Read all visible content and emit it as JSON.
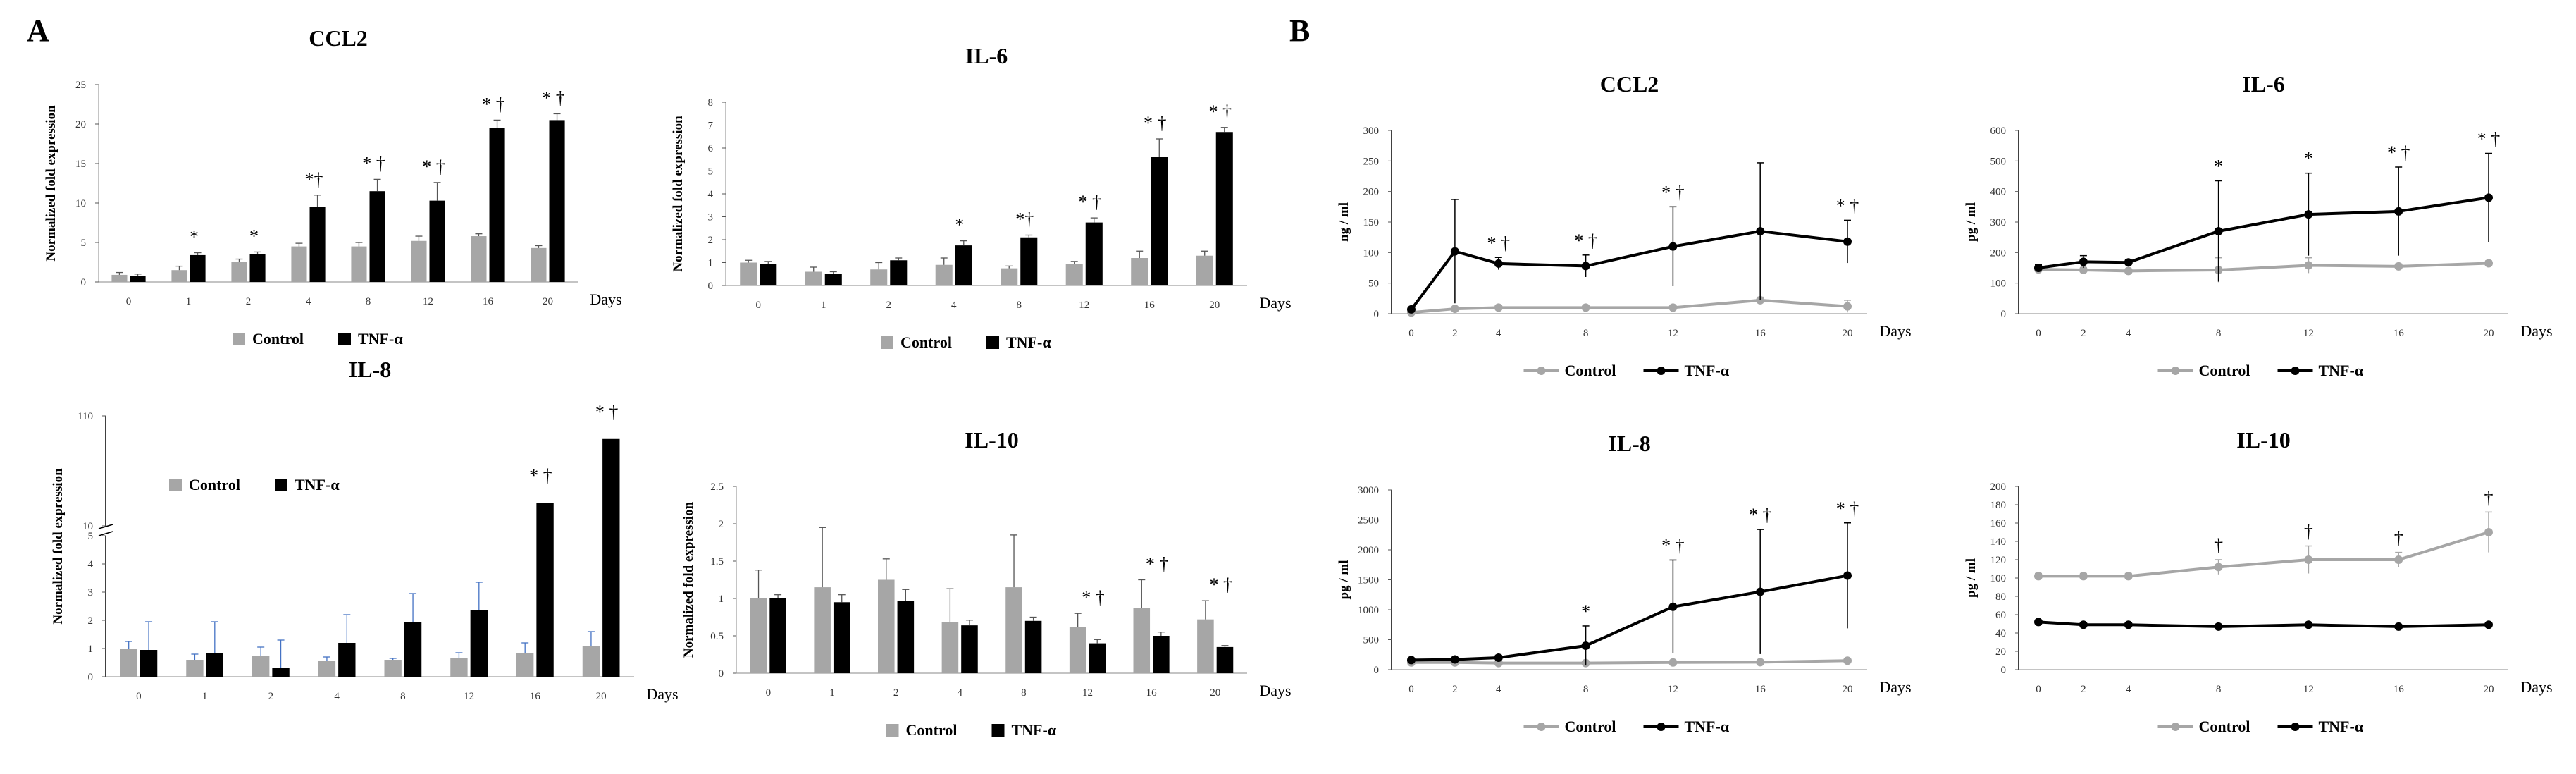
{
  "panels": {
    "A": "A",
    "B": "B"
  },
  "days_label": "Days",
  "colors": {
    "control": "#a6a6a6",
    "tnf": "#000000",
    "error": "#4472c4"
  },
  "legend": {
    "control": "Control",
    "tnf": "TNF-α"
  },
  "chart_data": [
    {
      "id": "a_ccl2",
      "panel": "A",
      "type": "bar",
      "title": "CCL2",
      "ylabel": "Normalized fold expression",
      "xlabel": "Days",
      "ylim": [
        0,
        25
      ],
      "yticks": [
        "0",
        "5",
        "10",
        "15",
        "20",
        "25"
      ],
      "ytick_values": [
        0,
        5,
        10,
        15,
        20,
        25
      ],
      "categories": [
        "0",
        "1",
        "2",
        "4",
        "8",
        "12",
        "16",
        "20"
      ],
      "series": [
        {
          "name": "Control",
          "values": [
            0.9,
            1.5,
            2.5,
            4.5,
            4.5,
            5.2,
            5.8,
            4.3
          ],
          "errors": [
            0.3,
            0.5,
            0.4,
            0.4,
            0.5,
            0.6,
            0.3,
            0.3
          ]
        },
        {
          "name": "TNF-α",
          "values": [
            0.8,
            3.4,
            3.5,
            9.5,
            11.5,
            10.3,
            19.5,
            20.5
          ],
          "errors": [
            0.2,
            0.3,
            0.3,
            1.5,
            1.5,
            2.3,
            1.0,
            0.8
          ]
        }
      ],
      "sig": [
        "",
        "*",
        "*",
        "*†",
        "* †",
        "* †",
        "* †",
        "* †"
      ],
      "legend_position": "bottom"
    },
    {
      "id": "a_il6",
      "panel": "A",
      "type": "bar",
      "title": "IL-6",
      "ylabel": "Normalized fold expression",
      "xlabel": "Days",
      "ylim": [
        0,
        8
      ],
      "yticks": [
        "0",
        "1",
        "2",
        "3",
        "4",
        "5",
        "6",
        "7",
        "8"
      ],
      "ytick_values": [
        0,
        1,
        2,
        3,
        4,
        5,
        6,
        7,
        8
      ],
      "categories": [
        "0",
        "1",
        "2",
        "4",
        "8",
        "12",
        "16",
        "20"
      ],
      "series": [
        {
          "name": "Control",
          "values": [
            1.0,
            0.6,
            0.7,
            0.9,
            0.75,
            0.95,
            1.2,
            1.3
          ],
          "errors": [
            0.1,
            0.2,
            0.3,
            0.3,
            0.1,
            0.1,
            0.3,
            0.2
          ]
        },
        {
          "name": "TNF-α",
          "values": [
            0.95,
            0.5,
            1.1,
            1.75,
            2.1,
            2.75,
            5.6,
            6.7
          ],
          "errors": [
            0.1,
            0.1,
            0.1,
            0.2,
            0.1,
            0.2,
            0.8,
            0.2
          ]
        }
      ],
      "sig": [
        "",
        "",
        "",
        "*",
        "*†",
        "* †",
        "* †",
        "* †"
      ],
      "legend_position": "bottom"
    },
    {
      "id": "a_il8",
      "panel": "A",
      "type": "bar",
      "title": "IL-8",
      "ylabel": "Normalized fold expression",
      "xlabel": "Days",
      "ylim": [
        0,
        5
      ],
      "ylim_upper": [
        10,
        110
      ],
      "axis_break": true,
      "yticks": [
        "0",
        "1",
        "2",
        "3",
        "4",
        "5"
      ],
      "ytick_values": [
        0,
        1,
        2,
        3,
        4,
        5
      ],
      "upper_yticks": [
        "10",
        "110"
      ],
      "upper_ytick_values": [
        10,
        110
      ],
      "categories": [
        "0",
        "1",
        "2",
        "4",
        "8",
        "12",
        "16",
        "20"
      ],
      "series": [
        {
          "name": "Control",
          "values": [
            1.0,
            0.6,
            0.75,
            0.55,
            0.6,
            0.65,
            0.85,
            1.1
          ],
          "errors": [
            0.25,
            0.2,
            0.3,
            0.15,
            0.05,
            0.2,
            0.35,
            0.5
          ]
        },
        {
          "name": "TNF-α",
          "values": [
            0.95,
            0.85,
            0.3,
            1.2,
            1.95,
            2.35,
            31,
            89
          ],
          "errors": [
            1.0,
            1.1,
            1.0,
            1.0,
            1.0,
            1.0,
            1.0,
            1.0
          ]
        }
      ],
      "sig": [
        "",
        "",
        "",
        "",
        "",
        "",
        "* †",
        "* †"
      ],
      "legend_position": "top-left"
    },
    {
      "id": "a_il10",
      "panel": "A",
      "type": "bar",
      "title": "IL-10",
      "ylabel": "Normalized fold expression",
      "xlabel": "Days",
      "ylim": [
        0,
        2.5
      ],
      "yticks": [
        "0",
        "0.5",
        "1",
        "1.5",
        "2",
        "2.5"
      ],
      "ytick_values": [
        0,
        0.5,
        1,
        1.5,
        2,
        2.5
      ],
      "categories": [
        "0",
        "1",
        "2",
        "4",
        "8",
        "12",
        "16",
        "20"
      ],
      "series": [
        {
          "name": "Control",
          "values": [
            1.0,
            1.15,
            1.25,
            0.68,
            1.15,
            0.62,
            0.87,
            0.72
          ],
          "errors": [
            0.38,
            0.8,
            0.28,
            0.45,
            0.7,
            0.18,
            0.38,
            0.25
          ]
        },
        {
          "name": "TNF-α",
          "values": [
            1.0,
            0.95,
            0.97,
            0.64,
            0.7,
            0.4,
            0.5,
            0.35
          ],
          "errors": [
            0.05,
            0.1,
            0.15,
            0.07,
            0.05,
            0.05,
            0.05,
            0.02
          ]
        }
      ],
      "sig": [
        "",
        "",
        "",
        "",
        "",
        "* †",
        "* †",
        "* †"
      ],
      "legend_position": "bottom"
    },
    {
      "id": "b_ccl2",
      "panel": "B",
      "type": "line",
      "title": "CCL2",
      "ylabel": "ng / ml",
      "xlabel": "Days",
      "ylim": [
        0,
        300
      ],
      "yticks": [
        "0",
        "50",
        "100",
        "150",
        "200",
        "250",
        "300"
      ],
      "ytick_values": [
        0,
        50,
        100,
        150,
        200,
        250,
        300
      ],
      "x": [
        0,
        2,
        4,
        8,
        12,
        16,
        20
      ],
      "series": [
        {
          "name": "Control",
          "values": [
            2,
            8,
            10,
            10,
            10,
            22,
            12
          ],
          "errors": [
            2,
            3,
            3,
            3,
            3,
            5,
            10
          ]
        },
        {
          "name": "TNF-α",
          "values": [
            7,
            102,
            82,
            78,
            110,
            135,
            118
          ],
          "errors": [
            3,
            85,
            10,
            18,
            65,
            112,
            35
          ]
        }
      ],
      "sig": [
        "",
        "",
        "* †",
        "* †",
        "* †",
        "",
        "* †"
      ],
      "legend_position": "bottom"
    },
    {
      "id": "b_il6",
      "panel": "B",
      "type": "line",
      "title": "IL-6",
      "ylabel": "pg / ml",
      "xlabel": "Days",
      "ylim": [
        0,
        600
      ],
      "yticks": [
        "0",
        "100",
        "200",
        "300",
        "400",
        "500",
        "600"
      ],
      "ytick_values": [
        0,
        100,
        200,
        300,
        400,
        500,
        600
      ],
      "x": [
        0,
        2,
        4,
        8,
        12,
        16,
        20
      ],
      "series": [
        {
          "name": "Control",
          "values": [
            145,
            143,
            140,
            143,
            158,
            155,
            165
          ],
          "errors": [
            5,
            8,
            6,
            40,
            25,
            8,
            8
          ]
        },
        {
          "name": "TNF-α",
          "values": [
            150,
            170,
            168,
            270,
            325,
            335,
            380
          ],
          "errors": [
            10,
            20,
            10,
            165,
            135,
            145,
            145
          ]
        }
      ],
      "sig": [
        "",
        "",
        "",
        "*",
        "*",
        "* †",
        "* †"
      ],
      "legend_position": "bottom"
    },
    {
      "id": "b_il8",
      "panel": "B",
      "type": "line",
      "title": "IL-8",
      "ylabel": "pg / ml",
      "xlabel": "Days",
      "ylim": [
        0,
        3000
      ],
      "yticks": [
        "0",
        "500",
        "1000",
        "1500",
        "2000",
        "2500",
        "3000"
      ],
      "ytick_values": [
        0,
        500,
        1000,
        1500,
        2000,
        2500,
        3000
      ],
      "x": [
        0,
        2,
        4,
        8,
        12,
        16,
        20
      ],
      "series": [
        {
          "name": "Control",
          "values": [
            120,
            120,
            110,
            110,
            120,
            125,
            150
          ],
          "errors": [
            10,
            10,
            10,
            10,
            15,
            15,
            20
          ]
        },
        {
          "name": "TNF-α",
          "values": [
            160,
            170,
            200,
            400,
            1050,
            1300,
            1570
          ],
          "errors": [
            20,
            30,
            40,
            330,
            780,
            1040,
            880
          ]
        }
      ],
      "sig": [
        "",
        "",
        "",
        "*",
        "* †",
        "* †",
        "* †"
      ],
      "legend_position": "bottom"
    },
    {
      "id": "b_il10",
      "panel": "B",
      "type": "line",
      "title": "IL-10",
      "ylabel": "pg / ml",
      "xlabel": "Days",
      "ylim": [
        0,
        200
      ],
      "yticks": [
        "0",
        "20",
        "40",
        "60",
        "80",
        "100",
        "120",
        "140",
        "160",
        "180",
        "200"
      ],
      "ytick_values": [
        0,
        20,
        40,
        60,
        80,
        100,
        120,
        140,
        160,
        180,
        200
      ],
      "x": [
        0,
        2,
        4,
        8,
        12,
        16,
        20
      ],
      "series": [
        {
          "name": "Control",
          "values": [
            102,
            102,
            102,
            112,
            120,
            120,
            150
          ],
          "errors": [
            3,
            3,
            3,
            8,
            15,
            8,
            22
          ]
        },
        {
          "name": "TNF-α",
          "values": [
            52,
            49,
            49,
            47,
            49,
            47,
            49
          ],
          "errors": [
            2,
            2,
            2,
            2,
            2,
            2,
            2
          ]
        }
      ],
      "sig": [
        "",
        "",
        "",
        "†",
        "†",
        "†",
        "†"
      ],
      "legend_position": "bottom"
    }
  ]
}
